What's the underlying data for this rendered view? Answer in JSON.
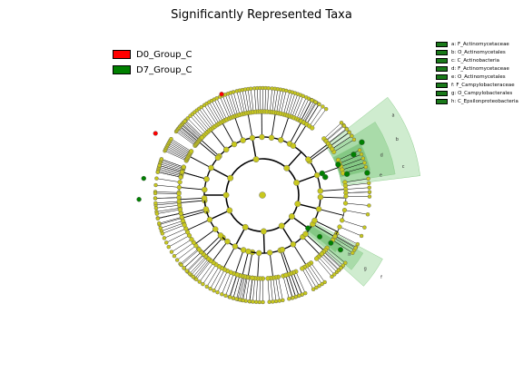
{
  "title": "Significantly Represented Taxa",
  "groups": [
    {
      "name": "D0_Group_C",
      "color": "#ff0000"
    },
    {
      "name": "D7_Group_C",
      "color": "#008000"
    }
  ],
  "taxa_legend": [
    "a: F_Actinomycetaceae",
    "b: O_Actinomycetales",
    "c: C_Actinobacteria",
    "d: F_Actinomycetaceae",
    "e: O_Actinomycetales",
    "f: F_Campylobacteraceae",
    "g: O_Campylobacterales",
    "h: C_Epsilonproteobacteria"
  ],
  "highlight_letters": [
    "a",
    "b",
    "c",
    "d",
    "e",
    "f",
    "g",
    "h"
  ],
  "colors": {
    "node_default": "#c8c81e",
    "node_green": "#008000",
    "node_red": "#ff0000",
    "sector_light": "#bfe5bf",
    "sector_mid": "#8fd08f",
    "sector_dark": "#5fb55f"
  }
}
